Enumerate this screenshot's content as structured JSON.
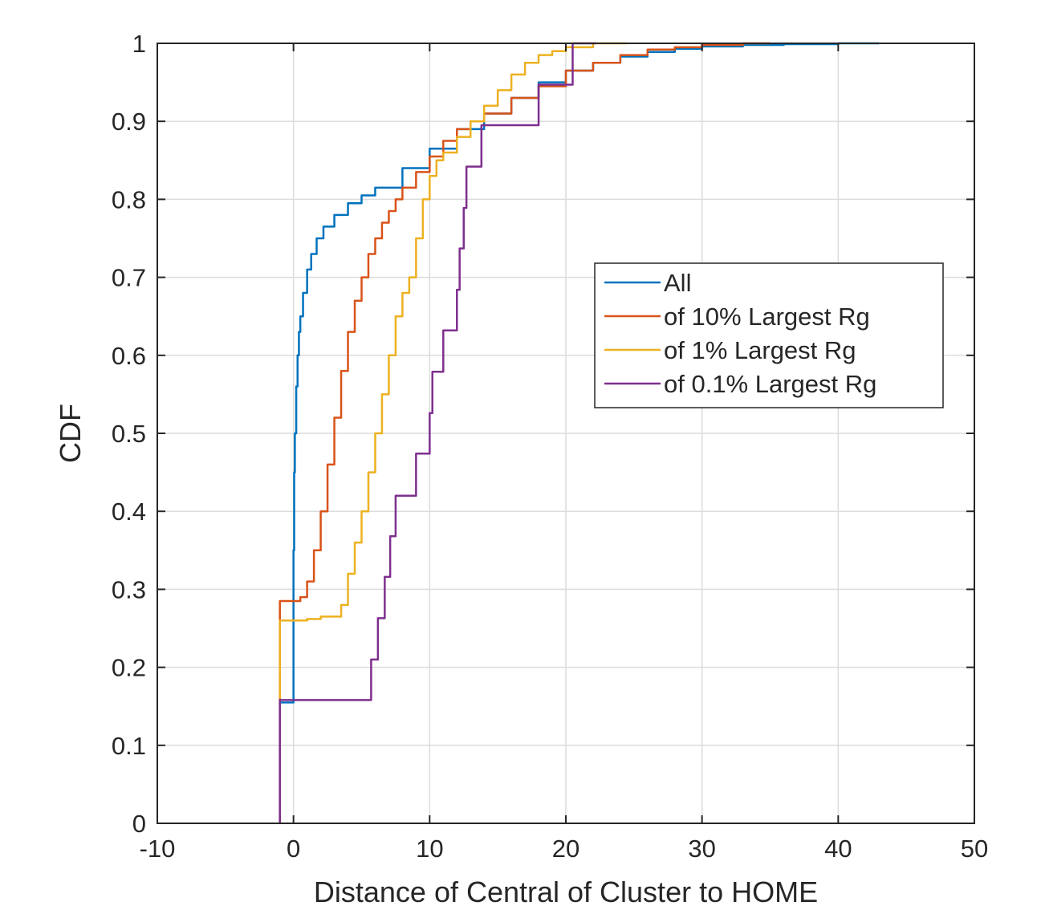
{
  "chart_data": {
    "type": "line",
    "step": true,
    "xlabel": "Distance of Central of Cluster to HOME",
    "ylabel": "CDF",
    "xlim": [
      -10,
      50
    ],
    "ylim": [
      0,
      1
    ],
    "xticks": [
      -10,
      0,
      10,
      20,
      30,
      40,
      50
    ],
    "yticks": [
      0,
      0.1,
      0.2,
      0.3,
      0.4,
      0.5,
      0.6,
      0.7,
      0.8,
      0.9,
      1
    ],
    "grid": true,
    "legend": {
      "placement": "right-middle"
    },
    "series": [
      {
        "name": "All",
        "color": "#0072BD",
        "x": [
          -1,
          -1,
          0,
          0,
          0.05,
          0.1,
          0.2,
          0.3,
          0.4,
          0.5,
          0.7,
          1.0,
          1.3,
          1.7,
          2.2,
          3.0,
          4.0,
          5.0,
          6.0,
          8.0,
          10.0,
          12.0,
          14.0,
          16.0,
          18.0,
          20.0,
          22.0,
          24.0,
          26.0,
          28.0,
          30.0,
          33.0,
          36.0,
          40.0,
          43.0
        ],
        "y": [
          0.155,
          0.155,
          0.155,
          0.35,
          0.45,
          0.5,
          0.56,
          0.6,
          0.63,
          0.65,
          0.68,
          0.71,
          0.73,
          0.75,
          0.765,
          0.78,
          0.795,
          0.805,
          0.815,
          0.84,
          0.865,
          0.89,
          0.91,
          0.93,
          0.95,
          0.965,
          0.975,
          0.983,
          0.989,
          0.993,
          0.996,
          0.998,
          0.999,
          1.0,
          1.0
        ]
      },
      {
        "name": "of 10% Largest Rg",
        "color": "#D95319",
        "x": [
          -1,
          -1,
          0,
          0.5,
          1.0,
          1.5,
          2.0,
          2.5,
          3.0,
          3.5,
          4.0,
          4.5,
          5.0,
          5.5,
          6.0,
          6.5,
          7.0,
          7.5,
          8.0,
          9.0,
          10.0,
          11.0,
          12.0,
          13.0,
          14.0,
          16.0,
          18.0,
          20.0,
          22.0,
          24.0,
          26.0,
          28.0,
          30.0,
          33.0,
          35.0
        ],
        "y": [
          0.0,
          0.285,
          0.285,
          0.29,
          0.31,
          0.35,
          0.4,
          0.46,
          0.52,
          0.58,
          0.63,
          0.67,
          0.7,
          0.73,
          0.75,
          0.77,
          0.785,
          0.8,
          0.815,
          0.835,
          0.855,
          0.875,
          0.89,
          0.9,
          0.91,
          0.93,
          0.945,
          0.965,
          0.975,
          0.985,
          0.992,
          0.995,
          0.998,
          1.0,
          1.0
        ]
      },
      {
        "name": "of 1% Largest Rg",
        "color": "#EDB120",
        "x": [
          -1,
          -1,
          0,
          1,
          2,
          3,
          3.5,
          4,
          4.5,
          5,
          5.5,
          6,
          6.5,
          7,
          7.5,
          8,
          8.5,
          9,
          9.5,
          10,
          10.5,
          11,
          12,
          13,
          14,
          15,
          16,
          17,
          18,
          19,
          20,
          22,
          24.5
        ],
        "y": [
          0.16,
          0.26,
          0.26,
          0.262,
          0.265,
          0.265,
          0.28,
          0.32,
          0.36,
          0.4,
          0.45,
          0.5,
          0.55,
          0.6,
          0.65,
          0.68,
          0.7,
          0.75,
          0.8,
          0.83,
          0.85,
          0.86,
          0.88,
          0.9,
          0.92,
          0.94,
          0.96,
          0.975,
          0.985,
          0.99,
          0.995,
          1.0,
          1.0
        ]
      },
      {
        "name": "of 0.1% Largest Rg",
        "color": "#7E2F8E",
        "x": [
          -1,
          -1,
          5.7,
          6.2,
          6.7,
          7.1,
          7.5,
          8.0,
          9.0,
          10.0,
          10.2,
          11.0,
          12.0,
          12.2,
          12.5,
          12.7,
          13.8,
          18.0,
          20.5,
          22.2
        ],
        "y": [
          0.0,
          0.158,
          0.21,
          0.263,
          0.316,
          0.368,
          0.42,
          0.42,
          0.474,
          0.526,
          0.579,
          0.632,
          0.684,
          0.737,
          0.789,
          0.842,
          0.895,
          0.947,
          1.0,
          1.0
        ]
      }
    ]
  }
}
